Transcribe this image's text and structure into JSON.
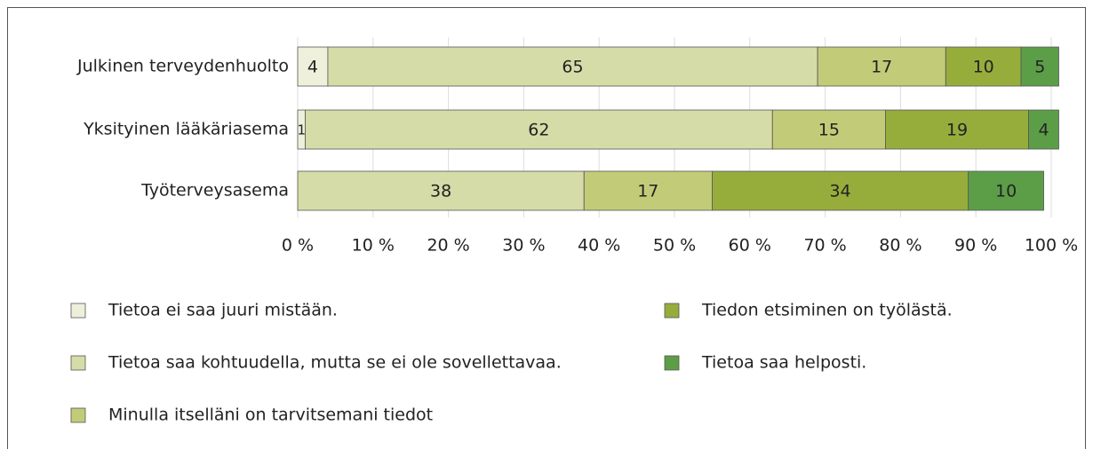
{
  "chart_data": {
    "type": "stacked-barh",
    "categories": [
      "Julkinen terveydenhuolto",
      "Yksityinen lääkäriasema",
      "Työterveysasema"
    ],
    "series": [
      {
        "name": "Tietoa ei saa juuri mistään.",
        "color": "#eef0dc",
        "values": [
          4,
          1,
          null
        ]
      },
      {
        "name": "Tietoa saa kohtuudella, mutta se ei ole sovellettavaa.",
        "color": "#d6dca8",
        "values": [
          65,
          62,
          38
        ]
      },
      {
        "name": "Minulla itselläni on tarvitsemani tiedot",
        "color": "#c2cc78",
        "values": [
          17,
          15,
          17
        ]
      },
      {
        "name": "Tiedon etsiminen on työlästä.",
        "color": "#96ad3c",
        "values": [
          10,
          19,
          34
        ]
      },
      {
        "name": "Tietoa saa helposti.",
        "color": "#5c9e48",
        "values": [
          5,
          4,
          10
        ]
      }
    ],
    "xlim": [
      0,
      100
    ],
    "xticks": [
      {
        "value": 0,
        "label": "0 %"
      },
      {
        "value": 10,
        "label": "10 %"
      },
      {
        "value": 20,
        "label": "20 %"
      },
      {
        "value": 30,
        "label": "30 %"
      },
      {
        "value": 40,
        "label": "40 %"
      },
      {
        "value": 50,
        "label": "50 %"
      },
      {
        "value": 60,
        "label": "60 %"
      },
      {
        "value": 70,
        "label": "70 %"
      },
      {
        "value": 80,
        "label": "80 %"
      },
      {
        "value": 90,
        "label": "90 %"
      },
      {
        "value": 100,
        "label": "100 %"
      }
    ],
    "grid": true
  }
}
